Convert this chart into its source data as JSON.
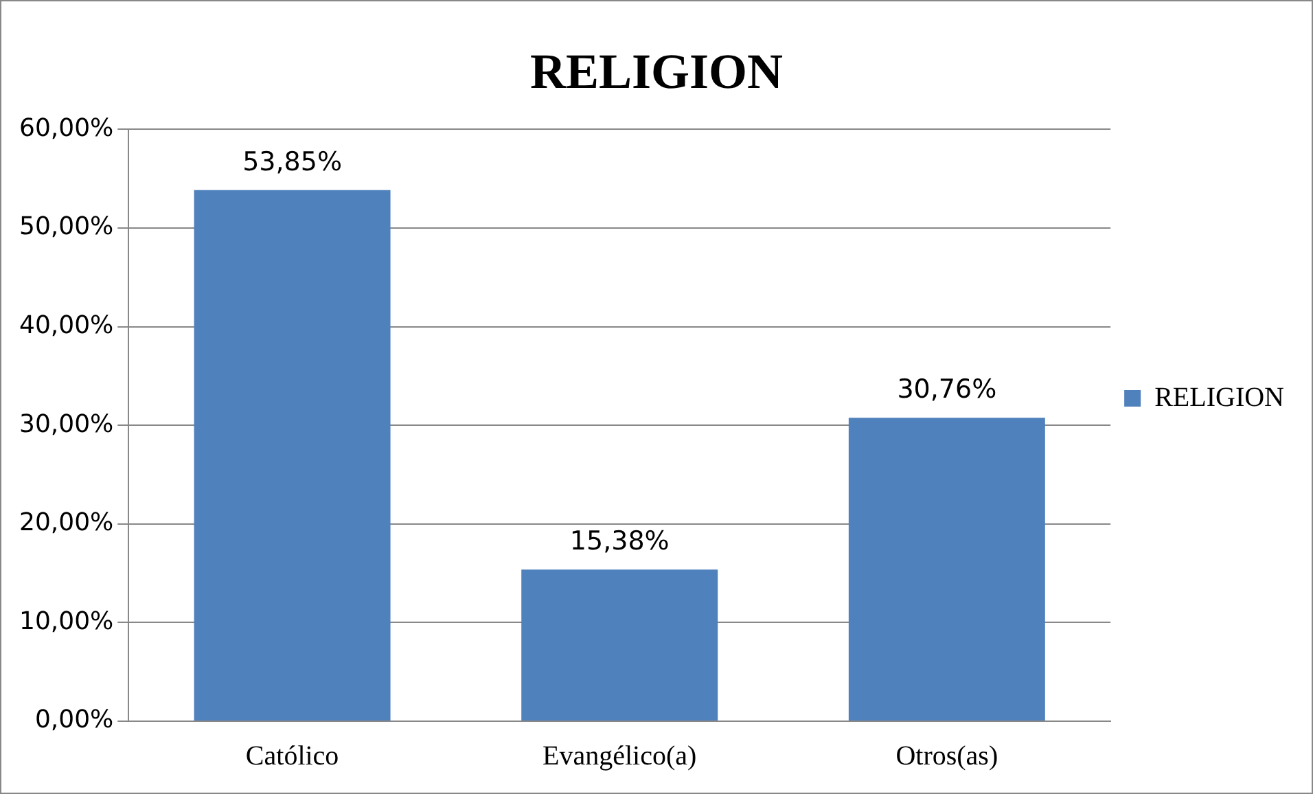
{
  "chart_data": {
    "type": "bar",
    "title": "RELIGION",
    "categories": [
      "Católico",
      "Evangélico(a)",
      "Otros(as)"
    ],
    "series": [
      {
        "name": "RELIGION",
        "color": "#4f81bd",
        "values": [
          53.85,
          15.38,
          30.76
        ],
        "value_labels": [
          "53,85%",
          "15,38%",
          "30,76%"
        ]
      }
    ],
    "ylim": [
      0,
      60
    ],
    "yticks": [
      {
        "value": 0,
        "label": "0,00%"
      },
      {
        "value": 10,
        "label": "10,00%"
      },
      {
        "value": 20,
        "label": "20,00%"
      },
      {
        "value": 30,
        "label": "30,00%"
      },
      {
        "value": 40,
        "label": "40,00%"
      },
      {
        "value": 50,
        "label": "50,00%"
      },
      {
        "value": 60,
        "label": "60,00%"
      }
    ],
    "grid": "y",
    "legend": "right"
  }
}
